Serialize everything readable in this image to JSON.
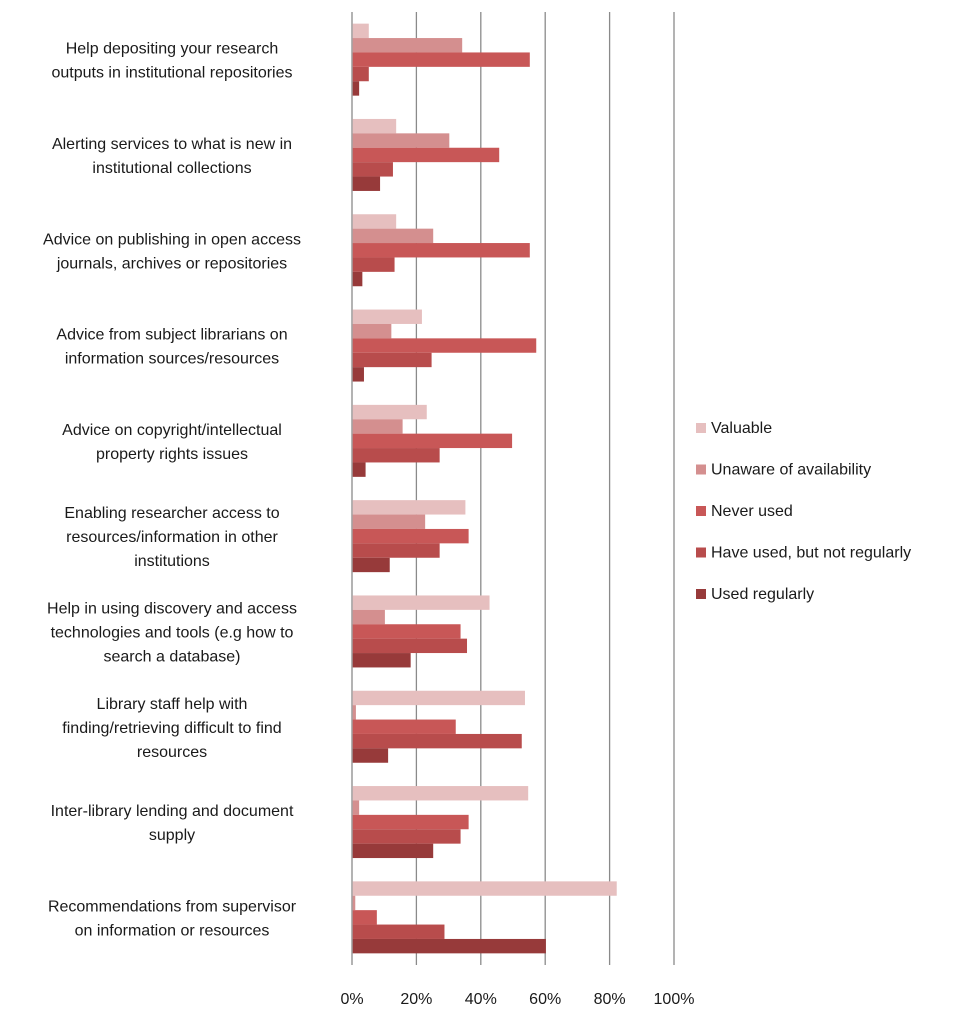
{
  "chart_data": {
    "type": "bar",
    "orientation": "horizontal",
    "categories": [
      [
        "Help depositing your research",
        "outputs in institutional repositories"
      ],
      [
        "Alerting services to what is new in",
        "institutional collections"
      ],
      [
        "Advice on publishing in open access",
        "journals, archives or repositories"
      ],
      [
        "Advice from subject librarians on",
        "information sources/resources"
      ],
      [
        "Advice on copyright/intellectual",
        "property rights issues"
      ],
      [
        "Enabling researcher access to",
        "resources/information in other",
        "institutions"
      ],
      [
        "Help in using discovery and access",
        "technologies and tools (e.g how to",
        "search a database)"
      ],
      [
        "Library staff help with",
        "finding/retrieving difficult to find",
        "resources"
      ],
      [
        "Inter-library lending and document",
        "supply"
      ],
      [
        "Recommendations from supervisor",
        "on information or resources"
      ]
    ],
    "series": [
      {
        "name": "Valuable",
        "color": "#e6bfbf",
        "values": [
          5,
          13.5,
          13.5,
          21.5,
          23,
          35,
          42.5,
          53.5,
          54.5,
          82
        ]
      },
      {
        "name": "Unaware of availability",
        "color": "#d48f8f",
        "values": [
          34,
          30,
          25,
          12,
          15.5,
          22.5,
          10,
          1,
          2,
          0.8
        ]
      },
      {
        "name": "Never used",
        "color": "#c85757",
        "values": [
          55,
          45.5,
          55,
          57,
          49.5,
          36,
          33.5,
          32,
          36,
          7.5
        ]
      },
      {
        "name": "Have used, but not regularly",
        "color": "#b84c4c",
        "values": [
          5,
          12.5,
          13,
          24.5,
          27,
          27,
          35.5,
          52.5,
          33.5,
          28.5
        ]
      },
      {
        "name": "Used regularly",
        "color": "#973a3a",
        "values": [
          2,
          8.5,
          3,
          3.5,
          4,
          11.5,
          18,
          11,
          25,
          60
        ]
      }
    ],
    "xlim": [
      0,
      100
    ],
    "ticks": [
      "0%",
      "20%",
      "40%",
      "60%",
      "80%",
      "100%"
    ],
    "tick_values": [
      0,
      20,
      40,
      60,
      80,
      100
    ],
    "grid": true,
    "legend_position": "right",
    "title": "",
    "xlabel": "",
    "ylabel": ""
  }
}
